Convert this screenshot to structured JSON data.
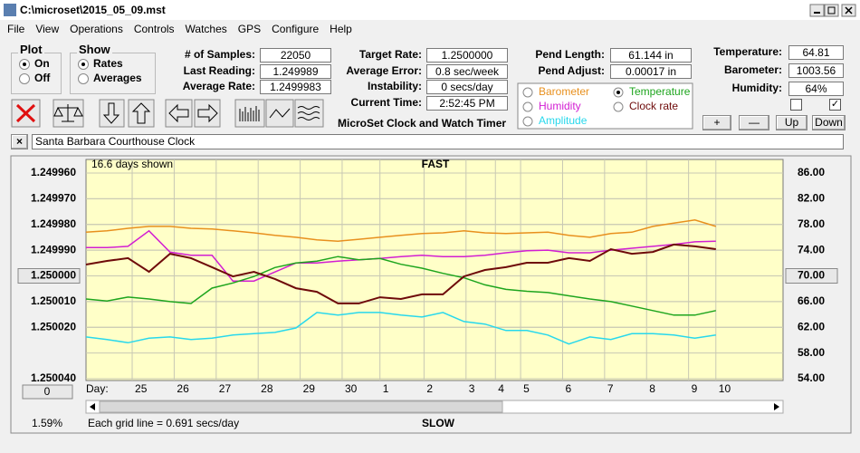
{
  "window": {
    "title": "C:\\microset\\2015_05_09.mst"
  },
  "menu": [
    "File",
    "View",
    "Operations",
    "Controls",
    "Watches",
    "GPS",
    "Configure",
    "Help"
  ],
  "plot_group": {
    "title": "Plot",
    "options": [
      "On",
      "Off"
    ],
    "selected": 0
  },
  "show_group": {
    "title": "Show",
    "options": [
      "Rates",
      "Averages"
    ],
    "selected": 0
  },
  "readings": [
    {
      "label": "# of Samples:",
      "value": "22050"
    },
    {
      "label": "Last Reading:",
      "value": "1.249989"
    },
    {
      "label": "Average Rate:",
      "value": "1.2499983"
    }
  ],
  "timing": [
    {
      "label": "Target Rate:",
      "value": "1.2500000"
    },
    {
      "label": "Average Error:",
      "value": "0.8 sec/week"
    },
    {
      "label": "Instability:",
      "value": "0 secs/day"
    },
    {
      "label": "Current Time:",
      "value": "2:52:45 PM"
    }
  ],
  "app_title": "MicroSet Clock and Watch Timer",
  "pendulum": [
    {
      "label": "Pend Length:",
      "value": "61.144 in"
    },
    {
      "label": "Pend Adjust:",
      "value": "0.00017 in"
    }
  ],
  "environment": [
    {
      "label": "Temperature:",
      "value": "64.81"
    },
    {
      "label": "Barometer:",
      "value": "1003.56"
    },
    {
      "label": "Humidity:",
      "value": "64%"
    }
  ],
  "checkboxes": [
    false,
    true
  ],
  "env_buttons": [
    "+",
    "—",
    "Up",
    "Down"
  ],
  "description": {
    "close": "×",
    "text": "Santa Barbara Courthouse Clock"
  },
  "chart_panel": {
    "zero_button": "0",
    "percent": "1.59%"
  },
  "chart_data": {
    "type": "line",
    "title": "FAST",
    "bottom_label": "SLOW",
    "days_note": "16.6 days shown",
    "x_label": "Day:",
    "footer": "Each grid line = 0.691 secs/day",
    "xlim": [
      0,
      16.6
    ],
    "xticks": [
      {
        "value": 1.1,
        "label": "25"
      },
      {
        "value": 2.1,
        "label": "26"
      },
      {
        "value": 3.1,
        "label": "27"
      },
      {
        "value": 4.1,
        "label": "28"
      },
      {
        "value": 5.1,
        "label": "29"
      },
      {
        "value": 6.1,
        "label": "30"
      },
      {
        "value": 7.0,
        "label": "1"
      },
      {
        "value": 8.05,
        "label": "2"
      },
      {
        "value": 9.05,
        "label": "3"
      },
      {
        "value": 9.75,
        "label": "4"
      },
      {
        "value": 10.35,
        "label": "5"
      },
      {
        "value": 11.35,
        "label": "6"
      },
      {
        "value": 12.35,
        "label": "7"
      },
      {
        "value": 13.35,
        "label": "8"
      },
      {
        "value": 14.35,
        "label": "9"
      },
      {
        "value": 15.0,
        "label": "10"
      }
    ],
    "ylim": [
      1.25004,
      1.24996
    ],
    "yticks": [
      {
        "value": 1.24996,
        "label": "1.249960"
      },
      {
        "value": 1.24997,
        "label": "1.249970"
      },
      {
        "value": 1.24998,
        "label": "1.249980"
      },
      {
        "value": 1.24999,
        "label": "1.249990"
      },
      {
        "value": 1.25,
        "label": "1.250000"
      },
      {
        "value": 1.25001,
        "label": "1.250010"
      },
      {
        "value": 1.25002,
        "label": "1.250020"
      },
      {
        "value": 1.25004,
        "label": "1.250040"
      }
    ],
    "y2lim": [
      54,
      86
    ],
    "y2ticks": [
      {
        "value": 86,
        "label": "86.00"
      },
      {
        "value": 82,
        "label": "82.00"
      },
      {
        "value": 78,
        "label": "78.00"
      },
      {
        "value": 74,
        "label": "74.00"
      },
      {
        "value": 70,
        "label": "70.00"
      },
      {
        "value": 66,
        "label": "66.00"
      },
      {
        "value": 62,
        "label": "62.00"
      },
      {
        "value": 58,
        "label": "58.00"
      },
      {
        "value": 54,
        "label": "54.00"
      }
    ],
    "grid": true,
    "background": "#ffffc8",
    "x": [
      0,
      0.5,
      1,
      1.5,
      2,
      2.5,
      3,
      3.5,
      4,
      4.5,
      5,
      5.5,
      6,
      6.5,
      7,
      7.5,
      8,
      8.5,
      9,
      9.5,
      10,
      10.5,
      11,
      11.5,
      12,
      12.5,
      13,
      13.5,
      14,
      14.5,
      15
    ],
    "series": [
      {
        "name": "Barometer",
        "color": "#e8901e",
        "axis": "y2",
        "values": [
          76.8,
          77.0,
          77.4,
          77.7,
          77.7,
          77.4,
          77.3,
          77.0,
          76.7,
          76.3,
          76.0,
          75.6,
          75.4,
          75.7,
          76.0,
          76.3,
          76.6,
          76.7,
          77.0,
          76.7,
          76.6,
          76.7,
          76.8,
          76.3,
          76.0,
          76.6,
          76.8,
          77.7,
          78.2,
          78.7,
          77.7
        ]
      },
      {
        "name": "Humidity",
        "color": "#d21ed2",
        "axis": "y2",
        "values": [
          74.4,
          74.4,
          74.6,
          77.0,
          73.7,
          73.2,
          73.2,
          69.2,
          69.2,
          70.6,
          72.0,
          72.0,
          72.3,
          72.5,
          72.7,
          73.0,
          73.2,
          73.0,
          73.0,
          73.2,
          73.6,
          73.9,
          74.0,
          73.6,
          73.6,
          74.0,
          74.3,
          74.6,
          74.9,
          75.3,
          75.4
        ]
      },
      {
        "name": "Amplitude",
        "color": "#28d8ec",
        "axis": "y2",
        "values": [
          60.5,
          60.1,
          59.6,
          60.3,
          60.5,
          60.1,
          60.3,
          60.8,
          61.0,
          61.2,
          61.9,
          64.3,
          63.9,
          64.3,
          64.3,
          63.9,
          63.6,
          64.3,
          62.9,
          62.5,
          61.5,
          61.5,
          60.8,
          59.4,
          60.5,
          60.1,
          61.0,
          61.0,
          60.8,
          60.3,
          60.8
        ]
      },
      {
        "name": "Temperature",
        "color": "#1ea51e",
        "axis": "y2",
        "selected": true,
        "values": [
          66.4,
          66.1,
          66.7,
          66.4,
          66.0,
          65.7,
          68.1,
          68.9,
          69.9,
          71.3,
          72.0,
          72.3,
          73.0,
          72.5,
          72.7,
          71.8,
          71.2,
          70.4,
          69.7,
          68.6,
          67.9,
          67.6,
          67.4,
          66.9,
          66.4,
          66.0,
          65.3,
          64.6,
          63.9,
          63.9,
          64.6
        ]
      },
      {
        "name": "Clock rate",
        "color": "#6e0a0a",
        "axis": "y",
        "values": [
          1.2499956,
          1.2499942,
          1.2499931,
          1.2499984,
          1.2499914,
          1.2499931,
          1.2499966,
          1.2500002,
          1.2499984,
          1.2500012,
          1.2500048,
          1.2500062,
          1.2500107,
          1.2500107,
          1.2500083,
          1.250009,
          1.2500072,
          1.2500072,
          1.2500002,
          1.2499977,
          1.2499966,
          1.2499949,
          1.2499949,
          1.2499931,
          1.2499942,
          1.2499896,
          1.2499914,
          1.2499907,
          1.2499878,
          1.2499885,
          1.2499896
        ]
      }
    ]
  }
}
